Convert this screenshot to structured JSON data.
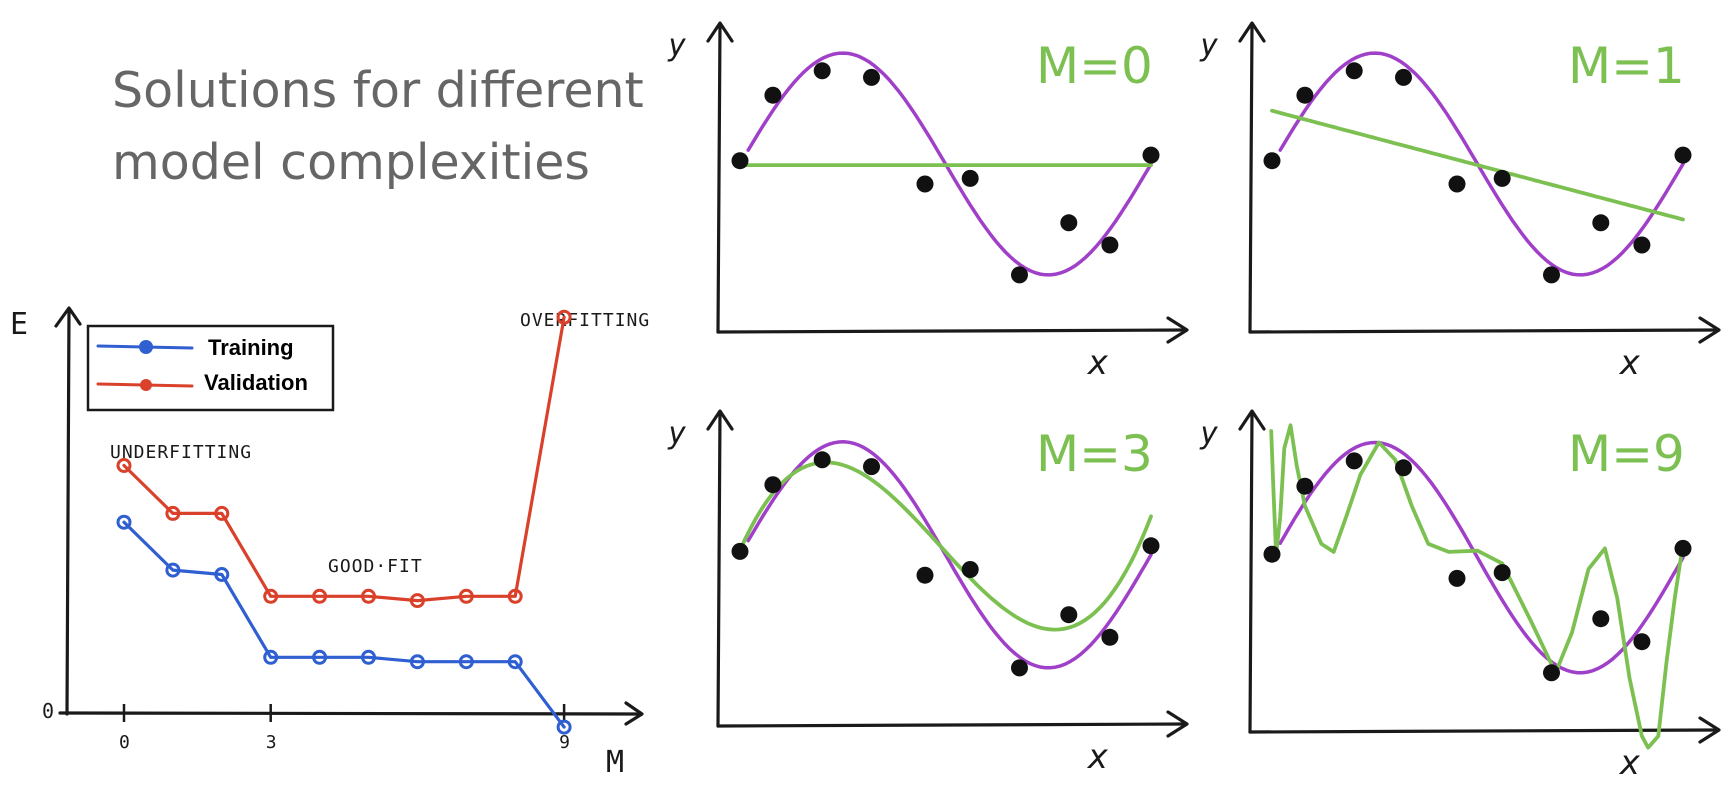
{
  "title": {
    "line1": "Solutions for different",
    "line2": "model complexities"
  },
  "colors": {
    "training": "#2f5fd0",
    "validation": "#d9412b",
    "true_curve": "#a040c8",
    "fit_curve": "#7cc052",
    "data_points": "#111111",
    "title": "#666666"
  },
  "error_plot": {
    "y_axis_label": "E",
    "x_axis_label": "M",
    "origin_label": "0",
    "x_ticks": [
      "0",
      "3",
      "9"
    ],
    "legend": {
      "training": "Training",
      "validation": "Validation"
    },
    "annotations": {
      "underfitting": "UNDERFITTING",
      "good_fit": "GOOD·FIT",
      "overfitting": "OVERFITTING"
    }
  },
  "chart_data": {
    "type": "line",
    "x": [
      0,
      1,
      2,
      3,
      4,
      5,
      6,
      7,
      8,
      9
    ],
    "series": [
      {
        "name": "Training",
        "values": [
          0.44,
          0.33,
          0.32,
          0.13,
          0.13,
          0.13,
          0.12,
          0.12,
          0.12,
          -0.03
        ]
      },
      {
        "name": "Validation",
        "values": [
          0.57,
          0.46,
          0.46,
          0.27,
          0.27,
          0.27,
          0.26,
          0.27,
          0.27,
          0.91
        ]
      }
    ],
    "xlabel": "M",
    "ylabel": "E",
    "xlim": [
      0,
      9.5
    ],
    "ylim": [
      0,
      1.05
    ]
  },
  "fit_panels": [
    {
      "label": "M=0",
      "x_axis_label": "x",
      "y_axis_label": "y"
    },
    {
      "label": "M=1",
      "x_axis_label": "x",
      "y_axis_label": "y"
    },
    {
      "label": "M=3",
      "x_axis_label": "x",
      "y_axis_label": "y"
    },
    {
      "label": "M=9",
      "x_axis_label": "x",
      "y_axis_label": "y"
    }
  ]
}
